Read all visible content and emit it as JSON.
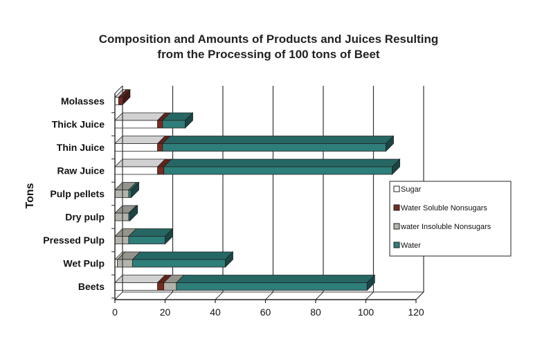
{
  "chart_data": {
    "type": "bar",
    "orientation": "horizontal",
    "stacked": true,
    "title": "Composition and Amounts of Products and Juices Resulting from the Processing of 100 tons of Beet",
    "title_lines": [
      "Composition and Amounts of Products and Juices Resulting",
      "from the Processing of 100 tons of Beet"
    ],
    "ylabel": "Tons",
    "xlabel": "",
    "xlim": [
      0,
      120
    ],
    "xticks": [
      "0",
      "20",
      "40",
      "60",
      "80",
      "100",
      "120"
    ],
    "grid": true,
    "legend_position": "right",
    "categories": [
      "Molasses",
      "Thick Juice",
      "Thin Juice",
      "Raw Juice",
      "Pulp pellets",
      "Dry pulp",
      "Pressed Pulp",
      "Wet Pulp",
      "Beets"
    ],
    "series": [
      {
        "name": "Sugar",
        "color": "#ffffff",
        "values": [
          1.5,
          17,
          17,
          17,
          0,
          0,
          0,
          1,
          17
        ]
      },
      {
        "name": "Water Soluble Nonsugars",
        "color": "#7a2a20",
        "values": [
          1.5,
          2,
          2,
          2.5,
          0,
          0,
          0,
          0,
          2.5
        ]
      },
      {
        "name": "water Insoluble Nonsugars",
        "color": "#b4b4ac",
        "values": [
          0,
          0,
          0,
          0,
          5.5,
          5.5,
          5.5,
          6,
          5
        ]
      },
      {
        "name": "Water",
        "color": "#2e7e7a",
        "values": [
          0,
          9,
          89,
          91,
          1,
          0.5,
          14.5,
          37,
          76
        ]
      }
    ]
  }
}
